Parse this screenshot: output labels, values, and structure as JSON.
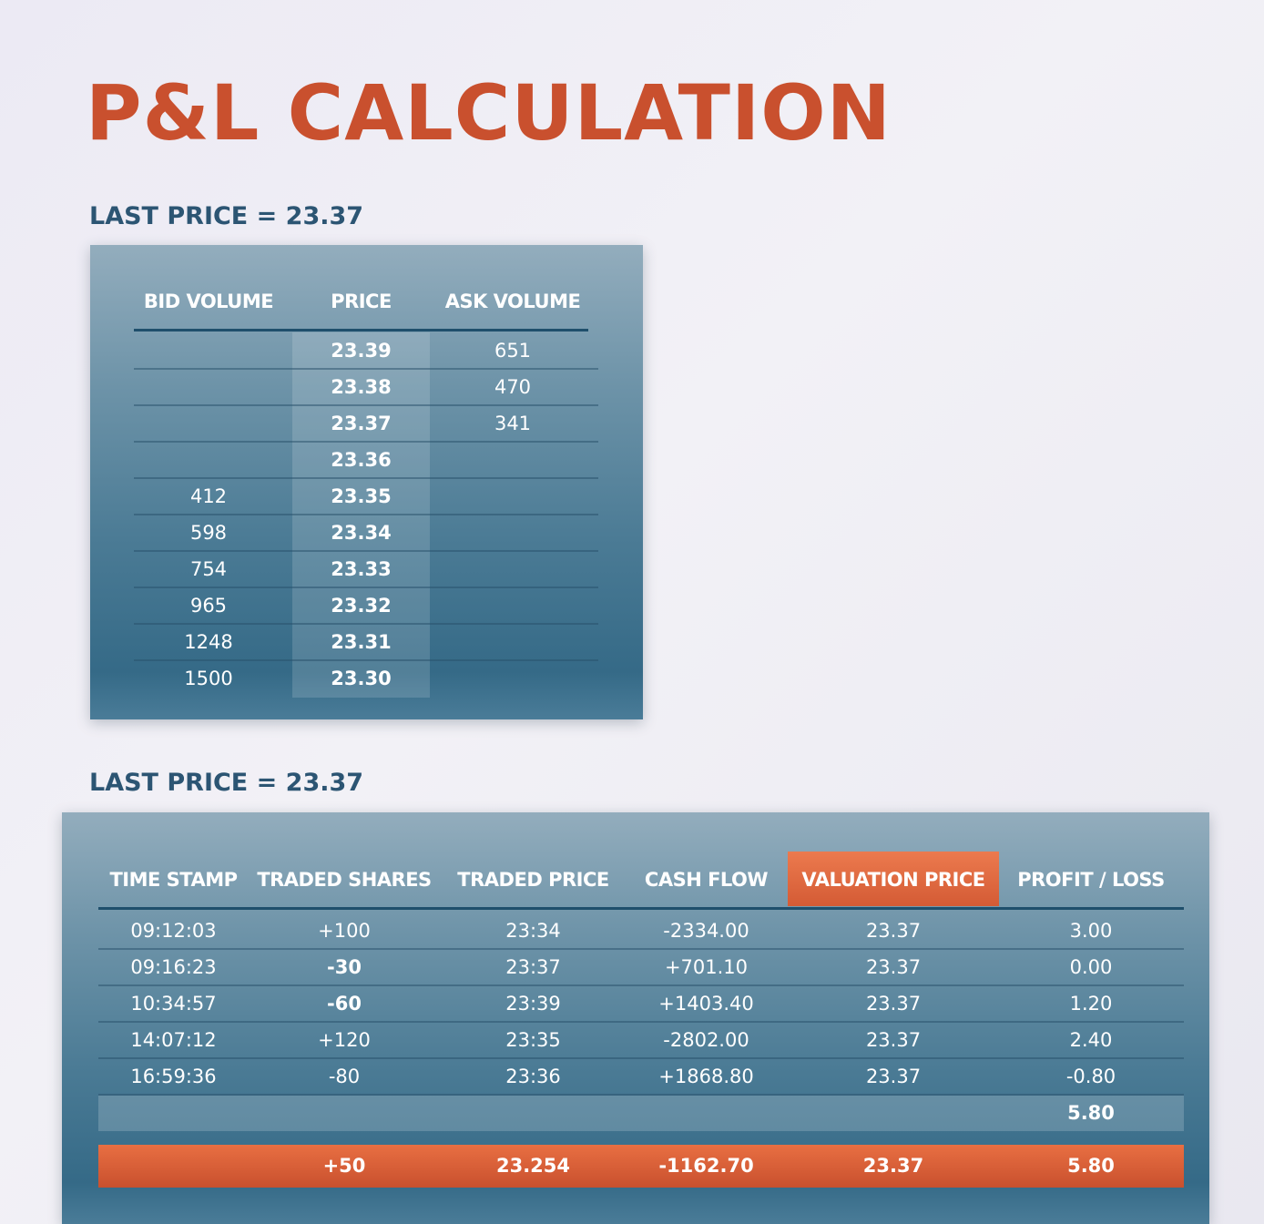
{
  "title": "P&L CALCULATION",
  "last_price_label_1": "LAST PRICE = 23.37",
  "last_price_label_2": "LAST PRICE = 23.37",
  "colors": {
    "accent": "#c9502e",
    "heading": "#2c5573",
    "panel": "#3f7290"
  },
  "order_book": {
    "headers": [
      "BID VOLUME",
      "PRICE",
      "ASK VOLUME"
    ],
    "rows": [
      {
        "bid": "",
        "price": "23.39",
        "ask": "651"
      },
      {
        "bid": "",
        "price": "23.38",
        "ask": "470"
      },
      {
        "bid": "",
        "price": "23.37",
        "ask": "341"
      },
      {
        "bid": "",
        "price": "23.36",
        "ask": ""
      },
      {
        "bid": "412",
        "price": "23.35",
        "ask": ""
      },
      {
        "bid": "598",
        "price": "23.34",
        "ask": ""
      },
      {
        "bid": "754",
        "price": "23.33",
        "ask": ""
      },
      {
        "bid": "965",
        "price": "23.32",
        "ask": ""
      },
      {
        "bid": "1248",
        "price": "23.31",
        "ask": ""
      },
      {
        "bid": "1500",
        "price": "23.30",
        "ask": ""
      }
    ]
  },
  "trades": {
    "headers": [
      "TIME STAMP",
      "TRADED SHARES",
      "TRADED PRICE",
      "CASH FLOW",
      "VALUATION PRICE",
      "PROFIT / LOSS"
    ],
    "rows": [
      {
        "time": "09:12:03",
        "shares": "+100",
        "price": "23:34",
        "cash": "-2334.00",
        "valuation": "23.37",
        "pl": "3.00",
        "shares_bold": false
      },
      {
        "time": "09:16:23",
        "shares": "-30",
        "price": "23:37",
        "cash": "+701.10",
        "valuation": "23.37",
        "pl": "0.00",
        "shares_bold": true
      },
      {
        "time": "10:34:57",
        "shares": "-60",
        "price": "23:39",
        "cash": "+1403.40",
        "valuation": "23.37",
        "pl": "1.20",
        "shares_bold": true
      },
      {
        "time": "14:07:12",
        "shares": "+120",
        "price": "23:35",
        "cash": "-2802.00",
        "valuation": "23.37",
        "pl": "2.40",
        "shares_bold": false
      },
      {
        "time": "16:59:36",
        "shares": "-80",
        "price": "23:36",
        "cash": "+1868.80",
        "valuation": "23.37",
        "pl": "-0.80",
        "shares_bold": false
      }
    ],
    "pl_sum": "5.80",
    "totals": {
      "shares": "+50",
      "price": "23.254",
      "cash": "-1162.70",
      "valuation": "23.37",
      "pl": "5.80"
    }
  }
}
